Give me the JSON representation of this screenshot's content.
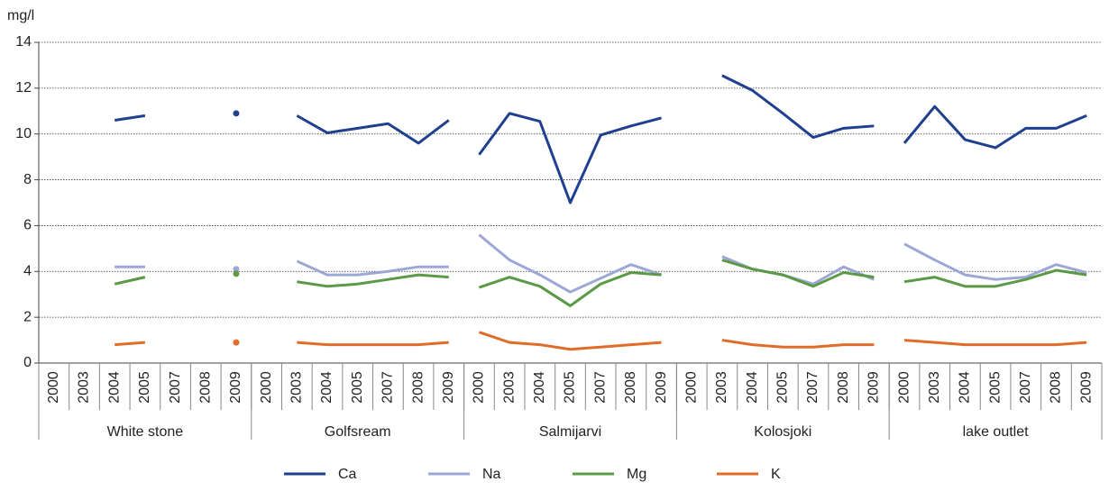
{
  "chart_data": {
    "type": "line",
    "y_label": "mg/l",
    "groups": [
      {
        "name": "White stone",
        "categories": [
          "2000",
          "2003",
          "2004",
          "2005",
          "2007",
          "2008",
          "2009"
        ]
      },
      {
        "name": "Golfsream",
        "categories": [
          "2000",
          "2003",
          "2004",
          "2005",
          "2007",
          "2008",
          "2009"
        ]
      },
      {
        "name": "Salmijarvi",
        "categories": [
          "2000",
          "2003",
          "2004",
          "2005",
          "2007",
          "2008",
          "2009"
        ]
      },
      {
        "name": "Kolosjoki",
        "categories": [
          "2000",
          "2003",
          "2004",
          "2005",
          "2007",
          "2008",
          "2009"
        ]
      },
      {
        "name": "lake outlet",
        "categories": [
          "2000",
          "2003",
          "2004",
          "2005",
          "2007",
          "2008",
          "2009"
        ]
      }
    ],
    "series": [
      {
        "name": "Ca",
        "color": "#1f3f8f",
        "values": [
          null,
          null,
          10.6,
          10.8,
          null,
          null,
          10.9,
          null,
          10.8,
          10.05,
          10.25,
          10.45,
          9.6,
          10.6,
          9.1,
          10.9,
          10.55,
          7.0,
          9.95,
          10.35,
          10.7,
          null,
          12.55,
          11.9,
          10.9,
          9.85,
          10.25,
          10.35,
          9.6,
          11.2,
          9.75,
          9.4,
          10.25,
          10.25,
          10.8
        ]
      },
      {
        "name": "Na",
        "color": "#9da7d6",
        "values": [
          null,
          null,
          4.2,
          4.2,
          null,
          null,
          4.1,
          null,
          4.45,
          3.85,
          3.85,
          4.0,
          4.2,
          4.2,
          5.6,
          4.5,
          3.85,
          3.1,
          3.7,
          4.3,
          3.85,
          null,
          4.65,
          4.1,
          3.85,
          3.45,
          4.2,
          3.65,
          5.2,
          4.5,
          3.85,
          3.65,
          3.75,
          4.3,
          3.95
        ]
      },
      {
        "name": "Mg",
        "color": "#5a9a46",
        "values": [
          null,
          null,
          3.45,
          3.75,
          null,
          null,
          3.9,
          null,
          3.55,
          3.35,
          3.45,
          3.65,
          3.85,
          3.75,
          3.3,
          3.75,
          3.35,
          2.5,
          3.45,
          3.95,
          3.85,
          null,
          4.5,
          4.1,
          3.85,
          3.35,
          3.95,
          3.75,
          3.55,
          3.75,
          3.35,
          3.35,
          3.65,
          4.05,
          3.85
        ]
      },
      {
        "name": "K",
        "color": "#e06c2a",
        "values": [
          null,
          null,
          0.8,
          0.9,
          null,
          null,
          0.9,
          null,
          0.9,
          0.8,
          0.8,
          0.8,
          0.8,
          0.9,
          1.35,
          0.9,
          0.8,
          0.6,
          0.7,
          0.8,
          0.9,
          null,
          1.0,
          0.8,
          0.7,
          0.7,
          0.8,
          0.8,
          1.0,
          0.9,
          0.8,
          0.8,
          0.8,
          0.8,
          0.9
        ]
      }
    ],
    "ylim": [
      0,
      14
    ],
    "yticks": [
      0,
      2,
      4,
      6,
      8,
      10,
      12,
      14
    ],
    "grid": true
  }
}
